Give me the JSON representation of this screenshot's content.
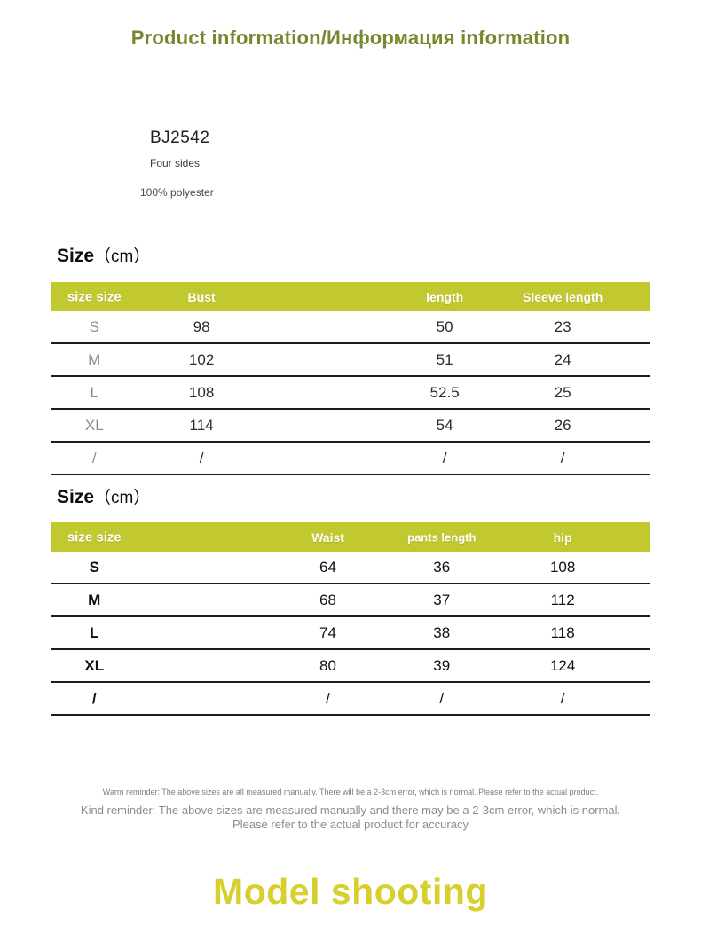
{
  "title": "Product information/Информация information",
  "product": {
    "code": "BJ2542",
    "line1": "Four sides",
    "line2": "100% polyester"
  },
  "tables": [
    {
      "heading_bold": "Size",
      "heading_rest": "（cm）",
      "headers": [
        "size size",
        "Bust",
        "length",
        "Sleeve length"
      ],
      "rows": [
        [
          "S",
          "98",
          "50",
          "23"
        ],
        [
          "M",
          "102",
          "51",
          "24"
        ],
        [
          "L",
          "108",
          "52.5",
          "25"
        ],
        [
          "XL",
          "114",
          "54",
          "26"
        ],
        [
          "/",
          "/",
          "/",
          "/"
        ]
      ]
    },
    {
      "heading_bold": "Size",
      "heading_rest": "（cm）",
      "headers": [
        "size size",
        "Waist",
        "pants length",
        "hip"
      ],
      "rows": [
        [
          "S",
          "64",
          "36",
          "108"
        ],
        [
          "M",
          "68",
          "37",
          "112"
        ],
        [
          "L",
          "74",
          "38",
          "118"
        ],
        [
          "XL",
          "80",
          "39",
          "124"
        ],
        [
          "/",
          "/",
          "/",
          "/"
        ]
      ]
    }
  ],
  "reminders": {
    "small": "Warm reminder: The above sizes are all measured manually. There will be a 2-3cm error, which is normal. Please refer to the actual product.",
    "large_line1": "Kind reminder: The above sizes are measured manually and there may be a 2-3cm error, which is normal.",
    "large_line2": "Please refer to the actual product for accuracy"
  },
  "footer": {
    "model_shooting": "Model shooting"
  },
  "colors": {
    "title_green": "#74892d",
    "table_header_bg": "#c2c930",
    "footer_yellow": "#d7cf2b"
  }
}
